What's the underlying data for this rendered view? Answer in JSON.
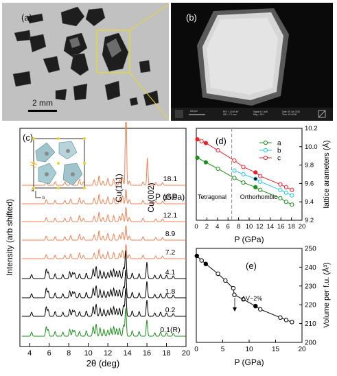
{
  "panel_labels": {
    "a": "(a)",
    "b": "(b)",
    "c": "(c)",
    "d": "(d)",
    "e": "(e)"
  },
  "scalebar_a": "2 mm",
  "sem_info": {
    "scale": "200 μm",
    "col1": [
      "EHT = 20.00 kV",
      "WD = 7.1 mm"
    ],
    "col2": [
      "Signal A = AsB",
      "Mag = 50 X"
    ],
    "col3": [
      "Date: 29 Jun 2020",
      "Time: 15:49:06"
    ]
  },
  "colors": {
    "orange": "#f08050",
    "black": "#000000",
    "green": "#1a8f1a",
    "d_a": "#1a8f1a",
    "d_b": "#23c8e6",
    "d_c": "#e8202a"
  },
  "chart_data": [
    {
      "type": "line",
      "panel": "c",
      "xlabel": "2θ (deg)",
      "ylabel": "Intensity (arb shifted)",
      "xlim": [
        3,
        20
      ],
      "xticks": [
        4,
        6,
        8,
        10,
        12,
        14,
        16,
        18,
        20
      ],
      "legend_title": "P (GPa)",
      "peak_labels": [
        "Cu(111)",
        "Cu(002)"
      ],
      "series": [
        {
          "name": "18.1",
          "color": "orange"
        },
        {
          "name": "15.9",
          "color": "orange"
        },
        {
          "name": "12.1",
          "color": "orange"
        },
        {
          "name": "8.9",
          "color": "orange"
        },
        {
          "name": "7.2",
          "color": "orange"
        },
        {
          "name": "4.1",
          "color": "black"
        },
        {
          "name": "1.8",
          "color": "black"
        },
        {
          "name": "0.2",
          "color": "black"
        },
        {
          "name": "0.1(R)",
          "color": "green"
        }
      ],
      "crystal_axes": [
        "a",
        "b"
      ]
    },
    {
      "type": "scatter",
      "panel": "d",
      "xlabel": "P (GPa)",
      "ylabel": "lattice arameters (Å)",
      "xlim": [
        0,
        20
      ],
      "ylim": [
        9.2,
        10.2
      ],
      "xticks": [
        0,
        2,
        4,
        6,
        8,
        10,
        12,
        14,
        16,
        18,
        20
      ],
      "yticks": [
        9.2,
        9.4,
        9.6,
        9.8,
        10.0,
        10.2
      ],
      "phase_labels": [
        "Tetragonal",
        "Orthorhombic"
      ],
      "phase_boundary_x": 6.7,
      "legend": [
        "a",
        "b",
        "c"
      ],
      "series": [
        {
          "name": "a",
          "color": "d_a",
          "x": [
            0.2,
            1.8,
            4.1,
            7.2,
            8.9,
            11.2,
            12.1,
            15.9,
            17.0,
            18.1
          ],
          "y": [
            9.88,
            9.83,
            9.76,
            9.66,
            9.61,
            9.56,
            9.53,
            9.44,
            9.4,
            9.37
          ],
          "filled": [
            true,
            true,
            false,
            false,
            false,
            true,
            false,
            false,
            false,
            false
          ]
        },
        {
          "name": "b",
          "color": "d_b",
          "x": [
            7.2,
            8.9,
            11.2,
            12.1,
            15.9,
            17.0,
            18.1
          ],
          "y": [
            9.74,
            9.7,
            9.65,
            9.62,
            9.53,
            9.5,
            9.47
          ],
          "filled": [
            false,
            false,
            true,
            false,
            false,
            false,
            false
          ]
        },
        {
          "name": "c",
          "color": "d_c",
          "x": [
            0.2,
            1.0,
            1.8,
            4.1,
            7.2,
            8.9,
            11.2,
            12.1,
            15.9,
            17.0,
            18.1
          ],
          "y": [
            10.08,
            10.06,
            10.04,
            9.96,
            9.85,
            9.78,
            9.72,
            9.68,
            9.59,
            9.56,
            9.53
          ],
          "filled": [
            true,
            false,
            true,
            false,
            false,
            false,
            true,
            false,
            false,
            false,
            false
          ]
        }
      ]
    },
    {
      "type": "scatter",
      "panel": "e",
      "xlabel": "P (GPa)",
      "ylabel": "Volume per f.u. (Å³)",
      "xlim": [
        0,
        20
      ],
      "ylim": [
        200,
        250
      ],
      "xticks": [
        0,
        5,
        10,
        15,
        20
      ],
      "yticks": [
        200,
        210,
        220,
        230,
        240,
        250
      ],
      "annotation": "ΔV~2%",
      "series": [
        {
          "name": "V",
          "x": [
            0.1,
            1.0,
            1.8,
            4.1,
            5.5,
            7.0,
            7.2,
            8.9,
            11.2,
            12.1,
            15.9,
            17.0,
            18.1
          ],
          "y": [
            246.0,
            243.6,
            241.7,
            236.5,
            232.9,
            228.8,
            225.3,
            222.9,
            219.3,
            217.6,
            213.2,
            211.9,
            210.8
          ],
          "filled": [
            true,
            false,
            true,
            false,
            false,
            false,
            false,
            false,
            true,
            false,
            false,
            false,
            false
          ]
        }
      ]
    }
  ]
}
